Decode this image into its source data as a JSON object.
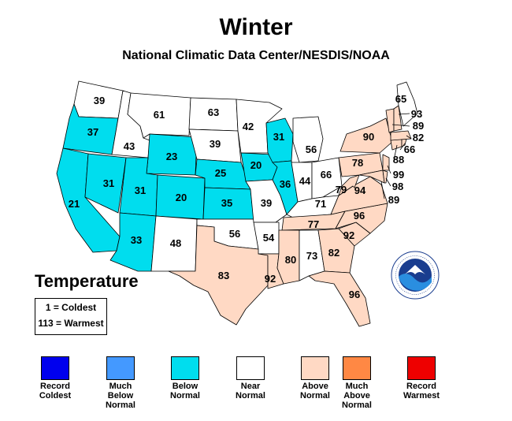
{
  "title": "Winter",
  "subtitle": "National Climatic Data Center/NESDIS/NOAA",
  "temperature_heading": "Temperature",
  "scale": {
    "coldest": "1 = Coldest",
    "warmest": "113 = Warmest"
  },
  "colors": {
    "record_coldest": "#0000ee",
    "much_below": "#4499ff",
    "below": "#00ddee",
    "near": "#ffffff",
    "above": "#ffd9c4",
    "much_above": "#ff8844",
    "record_warmest": "#ee0000"
  },
  "legend": [
    {
      "l1": "Record",
      "l2": "Coldest",
      "l3": "",
      "color": "#0000ee"
    },
    {
      "l1": "Much",
      "l2": "Below",
      "l3": "Normal",
      "color": "#4499ff"
    },
    {
      "l1": "Below",
      "l2": "Normal",
      "l3": "",
      "color": "#00ddee"
    },
    {
      "l1": "Near",
      "l2": "Normal",
      "l3": "",
      "color": "#ffffff"
    },
    {
      "l1": "Above",
      "l2": "Normal",
      "l3": "",
      "color": "#ffd9c4"
    },
    {
      "l1": "Much",
      "l2": "Above",
      "l3": "Normal",
      "color": "#ff8844"
    },
    {
      "l1": "Record",
      "l2": "Warmest",
      "l3": "",
      "color": "#ee0000"
    }
  ],
  "states": {
    "WA": "39",
    "OR": "37",
    "CA": "21",
    "ID": "43",
    "NV": "31",
    "MT": "61",
    "WY": "23",
    "UT": "31",
    "AZ": "33",
    "CO": "20",
    "NM": "48",
    "ND": "63",
    "SD": "39",
    "NE": "25",
    "KS": "35",
    "OK": "56",
    "TX": "83",
    "MN": "42",
    "IA": "20",
    "MO": "39",
    "AR": "54",
    "LA": "92",
    "WI": "31",
    "IL": "36",
    "MI": "56",
    "IN": "44",
    "OH": "66",
    "KY": "71",
    "TN": "77",
    "MS": "80",
    "AL": "73",
    "GA": "82",
    "FL": "96",
    "SC": "92",
    "NC": "96",
    "VA": "94",
    "WV": "79",
    "PA": "78",
    "NY": "90",
    "ME": "65",
    "NH": "93",
    "VT": "89",
    "MA": "82",
    "RI": "66",
    "CT": "88",
    "NJ": "99",
    "DE": "98",
    "MD": "89"
  }
}
